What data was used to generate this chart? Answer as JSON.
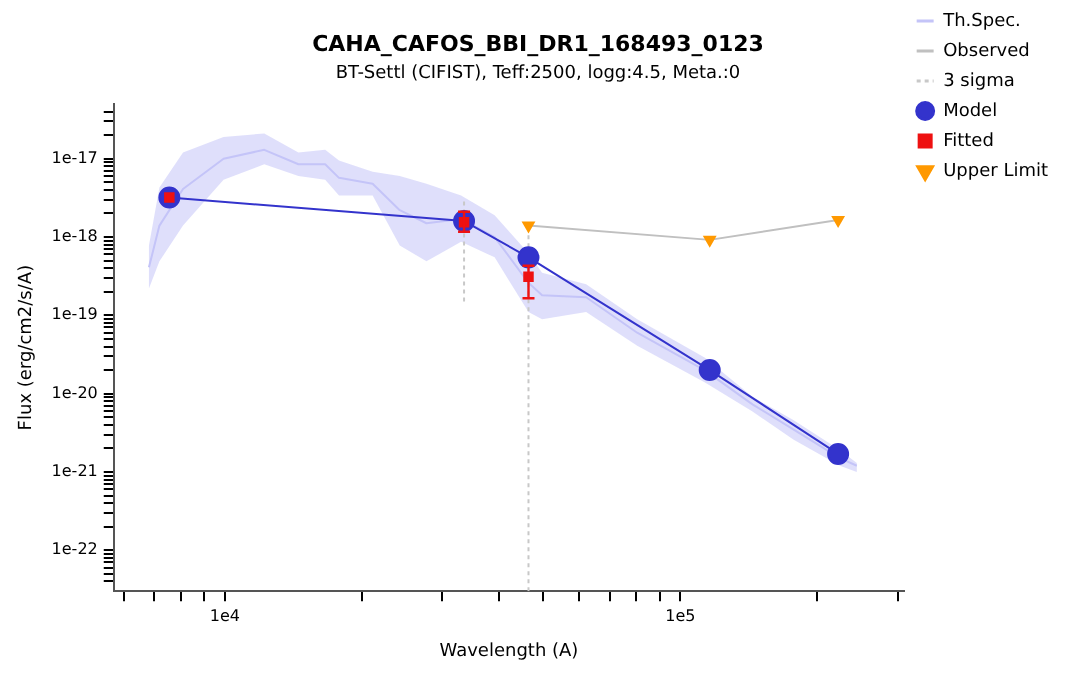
{
  "chart_data": {
    "type": "line",
    "title": "CAHA_CAFOS_BBI_DR1_168493_0123",
    "subtitle": "BT-Settl (CIFIST), Teff:2500, logg:4.5, Meta.:0",
    "xlabel": "Wavelength (A)",
    "ylabel": "Flux (erg/cm2/s/A)",
    "log": "xy",
    "grid": false,
    "legend": "right",
    "xlim": [
      5700,
      310000
    ],
    "ylim": [
      3e-23,
      5e-17
    ],
    "xticks": [
      {
        "value": 6000,
        "label": null
      },
      {
        "value": 7000,
        "label": null
      },
      {
        "value": 8000,
        "label": null
      },
      {
        "value": 9000,
        "label": null
      },
      {
        "value": 10000,
        "label": "1e4"
      },
      {
        "value": 20000,
        "label": null
      },
      {
        "value": 30000,
        "label": null
      },
      {
        "value": 40000,
        "label": null
      },
      {
        "value": 50000,
        "label": null
      },
      {
        "value": 60000,
        "label": null
      },
      {
        "value": 70000,
        "label": null
      },
      {
        "value": 80000,
        "label": null
      },
      {
        "value": 90000,
        "label": null
      },
      {
        "value": 100000,
        "label": "1e5"
      },
      {
        "value": 200000,
        "label": null
      },
      {
        "value": 300000,
        "label": null
      }
    ],
    "yticks": [
      {
        "value": 4e-23,
        "label": null
      },
      {
        "value": 5e-23,
        "label": null
      },
      {
        "value": 6e-23,
        "label": null
      },
      {
        "value": 7e-23,
        "label": null
      },
      {
        "value": 8e-23,
        "label": null
      },
      {
        "value": 9e-23,
        "label": null
      },
      {
        "value": 1e-22,
        "label": "1e-22"
      },
      {
        "value": 2e-22,
        "label": null
      },
      {
        "value": 3e-22,
        "label": null
      },
      {
        "value": 4e-22,
        "label": null
      },
      {
        "value": 5e-22,
        "label": null
      },
      {
        "value": 6e-22,
        "label": null
      },
      {
        "value": 7e-22,
        "label": null
      },
      {
        "value": 8e-22,
        "label": null
      },
      {
        "value": 9e-22,
        "label": null
      },
      {
        "value": 1e-21,
        "label": "1e-21"
      },
      {
        "value": 2e-21,
        "label": null
      },
      {
        "value": 3e-21,
        "label": null
      },
      {
        "value": 4e-21,
        "label": null
      },
      {
        "value": 5e-21,
        "label": null
      },
      {
        "value": 6e-21,
        "label": null
      },
      {
        "value": 7e-21,
        "label": null
      },
      {
        "value": 8e-21,
        "label": null
      },
      {
        "value": 9e-21,
        "label": null
      },
      {
        "value": 1e-20,
        "label": "1e-20"
      },
      {
        "value": 2e-20,
        "label": null
      },
      {
        "value": 3e-20,
        "label": null
      },
      {
        "value": 4e-20,
        "label": null
      },
      {
        "value": 5e-20,
        "label": null
      },
      {
        "value": 6e-20,
        "label": null
      },
      {
        "value": 7e-20,
        "label": null
      },
      {
        "value": 8e-20,
        "label": null
      },
      {
        "value": 9e-20,
        "label": null
      },
      {
        "value": 1e-19,
        "label": "1e-19"
      },
      {
        "value": 2e-19,
        "label": null
      },
      {
        "value": 3e-19,
        "label": null
      },
      {
        "value": 4e-19,
        "label": null
      },
      {
        "value": 5e-19,
        "label": null
      },
      {
        "value": 6e-19,
        "label": null
      },
      {
        "value": 7e-19,
        "label": null
      },
      {
        "value": 8e-19,
        "label": null
      },
      {
        "value": 9e-19,
        "label": null
      },
      {
        "value": 1e-18,
        "label": "1e-18"
      },
      {
        "value": 2e-18,
        "label": null
      },
      {
        "value": 3e-18,
        "label": null
      },
      {
        "value": 4e-18,
        "label": null
      },
      {
        "value": 5e-18,
        "label": null
      },
      {
        "value": 6e-18,
        "label": null
      },
      {
        "value": 7e-18,
        "label": null
      },
      {
        "value": 8e-18,
        "label": null
      },
      {
        "value": 9e-18,
        "label": null
      },
      {
        "value": 1e-17,
        "label": "1e-17"
      },
      {
        "value": 2e-17,
        "label": null
      },
      {
        "value": 3e-17,
        "label": null
      },
      {
        "value": 4e-17,
        "label": null
      }
    ],
    "series": [
      {
        "name": "Th.Spec.",
        "type": "line",
        "color": "#c4c4f8",
        "marker": "none",
        "x": [
          6810,
          7180,
          8090,
          9930,
          12200,
          14500,
          16600,
          17800,
          21100,
          24200,
          27700,
          33000,
          39100,
          46400,
          49700,
          62100,
          80400,
          113000,
          144000,
          177000,
          224000,
          244000
        ],
        "values": [
          4.1e-19,
          1.4e-18,
          4.1e-18,
          1e-17,
          1.3e-17,
          8.5e-18,
          8.5e-18,
          5.7e-18,
          4.8e-18,
          2.2e-18,
          1.5e-18,
          1.7e-18,
          1e-18,
          2.6e-19,
          1.8e-19,
          1.7e-19,
          6e-20,
          2e-20,
          7.3e-21,
          3.5e-21,
          1.5e-21,
          1.2e-21
        ],
        "lower": [
          2.2e-19,
          4.9e-19,
          1.4e-18,
          5.4e-18,
          8.5e-18,
          6e-18,
          5.4e-18,
          3.4e-18,
          3.4e-18,
          7.8e-19,
          4.9e-19,
          8.7e-19,
          5.5e-19,
          1.1e-19,
          8.9e-20,
          1.1e-19,
          4.1e-20,
          1.4e-20,
          5.9e-21,
          2.6e-21,
          1.2e-21,
          1e-21
        ],
        "upper": [
          7.8e-19,
          4.3e-18,
          1.2e-17,
          1.9e-17,
          2.1e-17,
          1.2e-17,
          1.3e-17,
          9.5e-18,
          6.8e-18,
          6e-18,
          4.8e-18,
          3.4e-18,
          1.9e-18,
          6.2e-19,
          3.5e-19,
          2.5e-19,
          8.9e-20,
          2.9e-20,
          9.1e-21,
          4.6e-21,
          1.9e-21,
          1.3e-21
        ]
      },
      {
        "name": "Observed",
        "type": "line",
        "color": "#c0c0c0",
        "marker": "none",
        "x": [
          46400,
          116000,
          222000
        ],
        "values": [
          1.4e-18,
          9.2e-19,
          1.65e-18
        ]
      },
      {
        "name": "3 sigma",
        "type": "line",
        "color": "#c8c8c8",
        "marker": "none",
        "line_style": "dotted",
        "x": [
          33500,
          33500,
          null,
          46400,
          46400
        ],
        "values": [
          1.5e-19,
          3e-18,
          null,
          3e-23,
          1.4e-18
        ]
      },
      {
        "name": "Model",
        "type": "line",
        "color": "#3333cc",
        "marker": "circle",
        "x": [
          7550,
          33500,
          46400,
          116000,
          222000
        ],
        "values": [
          3.2e-18,
          1.6e-18,
          5.5e-19,
          2e-20,
          1.7e-21
        ]
      },
      {
        "name": "Fitted",
        "type": "scatter",
        "color": "#ee1111",
        "marker": "square",
        "x": [
          7550,
          33500,
          46400
        ],
        "values": [
          3.2e-18,
          1.55e-18,
          3.1e-19
        ],
        "errors": [
          null,
          [
            1.17e-18,
            2.1e-18
          ],
          [
            1.65e-19,
            4.3e-19
          ]
        ]
      },
      {
        "name": "Upper Limit",
        "type": "scatter",
        "color": "#ff9900",
        "marker": "triangle",
        "x": [
          46400,
          116000,
          222000
        ],
        "values": [
          1.4e-18,
          9.2e-19,
          1.65e-18
        ]
      }
    ]
  }
}
